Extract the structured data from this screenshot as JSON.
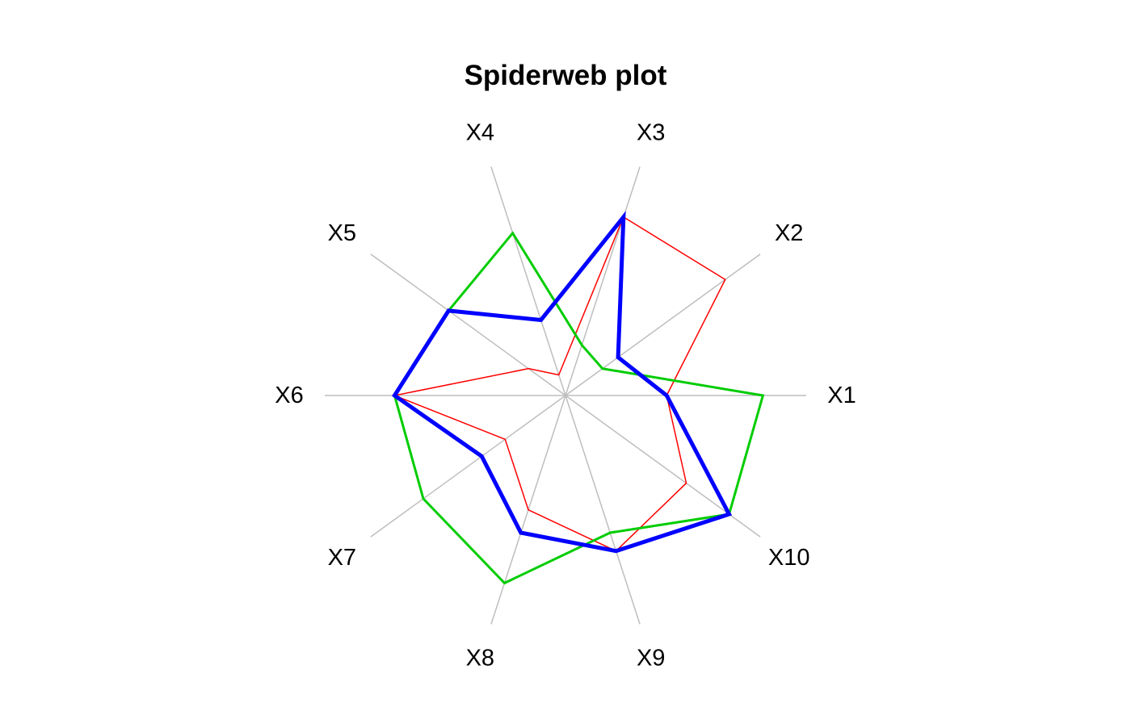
{
  "chart_data": {
    "type": "radar",
    "title": "Spiderweb plot",
    "axes": [
      "X1",
      "X2",
      "X3",
      "X4",
      "X5",
      "X6",
      "X7",
      "X8",
      "X9",
      "X10"
    ],
    "axis_angles_deg": [
      0,
      36,
      72,
      108,
      144,
      180,
      216,
      252,
      288,
      324
    ],
    "rlim": [
      0,
      1
    ],
    "grid": "spokes",
    "series": [
      {
        "color": "#FF0000",
        "values": [
          0.42,
          0.82,
          0.78,
          0.09,
          0.19,
          0.71,
          0.31,
          0.5,
          0.68,
          0.62
        ]
      },
      {
        "color": "#00CC00",
        "values": [
          0.82,
          0.19,
          0.22,
          0.71,
          0.6,
          0.71,
          0.73,
          0.82,
          0.6,
          0.84
        ]
      },
      {
        "color": "#0000FF",
        "values": [
          0.42,
          0.27,
          0.78,
          0.33,
          0.6,
          0.71,
          0.43,
          0.6,
          0.68,
          0.84
        ]
      }
    ]
  }
}
